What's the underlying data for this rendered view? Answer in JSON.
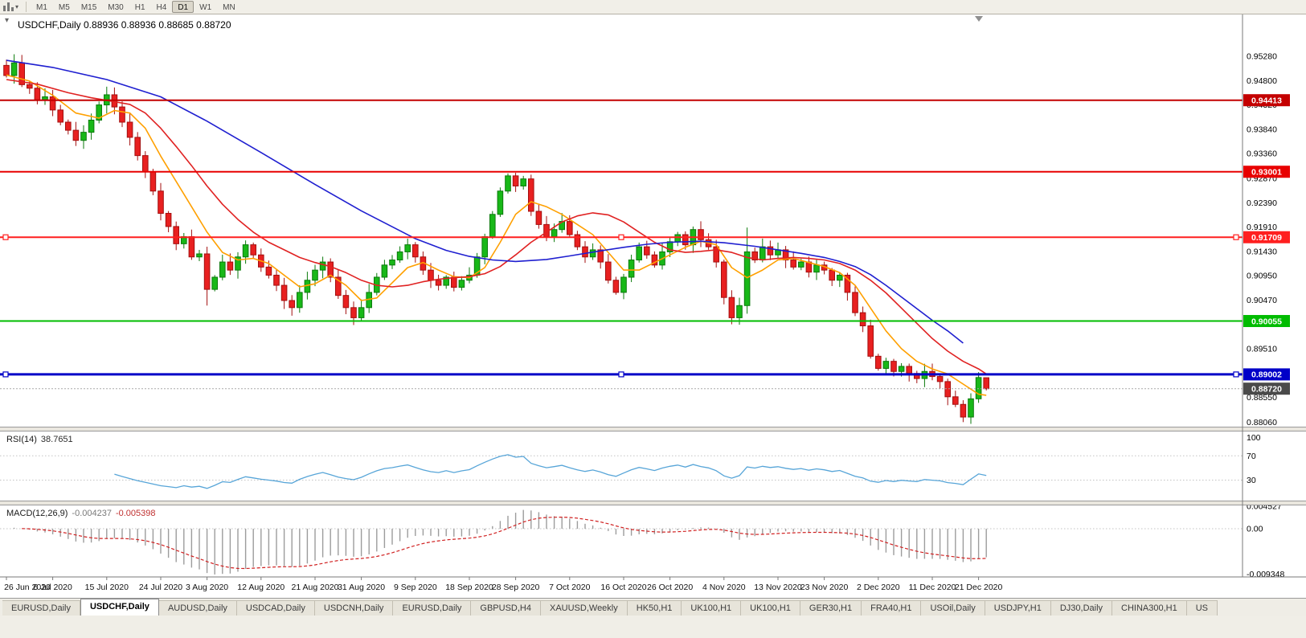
{
  "toolbar": {
    "timeframes": [
      "M1",
      "M5",
      "M15",
      "M30",
      "H1",
      "H4",
      "D1",
      "W1",
      "MN"
    ],
    "active_timeframe": "D1"
  },
  "icons": {
    "toolbar_chart": "candlestick-chart-icon",
    "toolbar_dropdown": "chevron-down-icon",
    "one_click_toggle": "one-click-trading-toggle",
    "shift_marker": "chart-shift-marker"
  },
  "chart": {
    "title": "USDCHF,Daily 0.88936 0.88936 0.88685 0.88720",
    "ohlc": {
      "open": "0.88936",
      "high": "0.88936",
      "low": "0.88685",
      "close": "0.88720"
    },
    "price_axis": {
      "min": 0.8797,
      "max": 0.9601,
      "ticks": [
        "0.95280",
        "0.94800",
        "0.94320",
        "0.93840",
        "0.93360",
        "0.92870",
        "0.92390",
        "0.91910",
        "0.91430",
        "0.90950",
        "0.90470",
        "0.89990",
        "0.89510",
        "0.89030",
        "0.88550",
        "0.88060"
      ]
    },
    "hlines": [
      {
        "price": 0.94413,
        "label": "0.94413",
        "color": "#c40000",
        "width": 2,
        "handles": false
      },
      {
        "price": 0.93001,
        "label": "0.93001",
        "color": "#e80000",
        "width": 2,
        "handles": false
      },
      {
        "price": 0.91709,
        "label": "0.91709",
        "color": "#ff1f1f",
        "width": 2,
        "handles": true
      },
      {
        "price": 0.90055,
        "label": "0.90055",
        "color": "#00bc00",
        "width": 2,
        "handles": false
      },
      {
        "price": 0.89002,
        "label": "0.89002",
        "color": "#0000c8",
        "width": 3,
        "handles": true
      }
    ],
    "current_price": {
      "price": 0.8872,
      "label": "0.88720",
      "color": "#4a4a4a"
    },
    "colors": {
      "bull_fill": "#18b818",
      "bull_stroke": "#0b7a0b",
      "bear_fill": "#e82020",
      "bear_stroke": "#a30f0f",
      "axis_text": "#000000",
      "panel_bg": "#ffffff"
    }
  },
  "chart_data": {
    "type": "candlestick",
    "symbol": "USDCHF",
    "timeframe": "Daily",
    "x_labels": [
      [
        "26 Jun 2020",
        0
      ],
      [
        "6 Jul 2020",
        6
      ],
      [
        "15 Jul 2020",
        13
      ],
      [
        "24 Jul 2020",
        20
      ],
      [
        "3 Aug 2020",
        26
      ],
      [
        "12 Aug 2020",
        33
      ],
      [
        "21 Aug 2020",
        40
      ],
      [
        "31 Aug 2020",
        46
      ],
      [
        "9 Sep 2020",
        53
      ],
      [
        "18 Sep 2020",
        60
      ],
      [
        "28 Sep 2020",
        66
      ],
      [
        "7 Oct 2020",
        73
      ],
      [
        "16 Oct 2020",
        80
      ],
      [
        "26 Oct 2020",
        86
      ],
      [
        "4 Nov 2020",
        93
      ],
      [
        "13 Nov 2020",
        100
      ],
      [
        "23 Nov 2020",
        106
      ],
      [
        "2 Dec 2020",
        113
      ],
      [
        "11 Dec 2020",
        120
      ],
      [
        "21 Dec 2020",
        126
      ]
    ],
    "closes": [
      0.949,
      0.9515,
      0.9472,
      0.9465,
      0.9442,
      0.9448,
      0.9422,
      0.9398,
      0.9382,
      0.9362,
      0.9378,
      0.9402,
      0.9432,
      0.9452,
      0.9428,
      0.9398,
      0.9368,
      0.9332,
      0.93,
      0.9262,
      0.9218,
      0.9192,
      0.9158,
      0.9172,
      0.9132,
      0.9138,
      0.9068,
      0.9092,
      0.9122,
      0.9106,
      0.9132,
      0.9156,
      0.9136,
      0.9112,
      0.9096,
      0.9076,
      0.9046,
      0.9032,
      0.9062,
      0.9086,
      0.9106,
      0.9122,
      0.9092,
      0.9056,
      0.9032,
      0.9012,
      0.9032,
      0.9062,
      0.9092,
      0.9116,
      0.9126,
      0.9142,
      0.9156,
      0.9132,
      0.9106,
      0.9086,
      0.9076,
      0.9092,
      0.9072,
      0.9086,
      0.9096,
      0.9132,
      0.9172,
      0.9216,
      0.9262,
      0.9292,
      0.9272,
      0.9286,
      0.9222,
      0.9196,
      0.9172,
      0.9186,
      0.9202,
      0.9176,
      0.9152,
      0.9132,
      0.9146,
      0.9122,
      0.9086,
      0.9062,
      0.9092,
      0.9126,
      0.9152,
      0.9136,
      0.9116,
      0.9142,
      0.9162,
      0.9176,
      0.9156,
      0.9186,
      0.9166,
      0.9152,
      0.9122,
      0.9052,
      0.9012,
      0.9036,
      0.9142,
      0.9126,
      0.9152,
      0.9136,
      0.9146,
      0.9126,
      0.9112,
      0.9122,
      0.9102,
      0.9116,
      0.9106,
      0.9086,
      0.9096,
      0.9062,
      0.9022,
      0.8996,
      0.8936,
      0.8912,
      0.8926,
      0.8906,
      0.8916,
      0.8902,
      0.8892,
      0.8906,
      0.8896,
      0.8886,
      0.8856,
      0.8841,
      0.8816,
      0.8852,
      0.8894,
      0.8872
    ],
    "extremes": {
      "1": {
        "h": 0.9532
      },
      "13": {
        "h": 0.9468
      },
      "26": {
        "l": 0.9036
      },
      "46": {
        "l": 0.9005
      },
      "65": {
        "h": 0.9297
      },
      "67": {
        "h": 0.9292
      },
      "89": {
        "h": 0.9192
      },
      "94": {
        "l": 0.8999
      },
      "96": {
        "h": 0.919
      },
      "124": {
        "l": 0.8806
      }
    },
    "last_bar": {
      "o": 0.88936,
      "h": 0.88936,
      "l": 0.88685,
      "c": 0.8872
    },
    "moving_averages": [
      {
        "name": "ma-fast-line",
        "color": "#ffa000",
        "points": [
          [
            0,
            0.9491
          ],
          [
            3,
            0.9479
          ],
          [
            6,
            0.9451
          ],
          [
            9,
            0.9416
          ],
          [
            12,
            0.9406
          ],
          [
            14,
            0.9421
          ],
          [
            16,
            0.9416
          ],
          [
            18,
            0.9386
          ],
          [
            20,
            0.9331
          ],
          [
            22,
            0.9281
          ],
          [
            24,
            0.9231
          ],
          [
            26,
            0.9181
          ],
          [
            28,
            0.9141
          ],
          [
            30,
            0.9126
          ],
          [
            32,
            0.9129
          ],
          [
            34,
            0.9119
          ],
          [
            36,
            0.9096
          ],
          [
            38,
            0.9073
          ],
          [
            40,
            0.9079
          ],
          [
            42,
            0.9096
          ],
          [
            44,
            0.9076
          ],
          [
            46,
            0.9046
          ],
          [
            48,
            0.9051
          ],
          [
            50,
            0.9081
          ],
          [
            52,
            0.9111
          ],
          [
            54,
            0.9121
          ],
          [
            56,
            0.9106
          ],
          [
            58,
            0.9093
          ],
          [
            60,
            0.9091
          ],
          [
            62,
            0.9111
          ],
          [
            64,
            0.9161
          ],
          [
            66,
            0.9216
          ],
          [
            68,
            0.9241
          ],
          [
            70,
            0.9231
          ],
          [
            72,
            0.9216
          ],
          [
            74,
            0.9196
          ],
          [
            76,
            0.9176
          ],
          [
            78,
            0.9141
          ],
          [
            80,
            0.9106
          ],
          [
            82,
            0.9106
          ],
          [
            84,
            0.9121
          ],
          [
            86,
            0.9136
          ],
          [
            88,
            0.9151
          ],
          [
            90,
            0.9163
          ],
          [
            92,
            0.9156
          ],
          [
            94,
            0.9111
          ],
          [
            96,
            0.9091
          ],
          [
            98,
            0.9106
          ],
          [
            100,
            0.9126
          ],
          [
            102,
            0.9129
          ],
          [
            104,
            0.9121
          ],
          [
            106,
            0.9113
          ],
          [
            108,
            0.9101
          ],
          [
            110,
            0.9076
          ],
          [
            112,
            0.9031
          ],
          [
            114,
            0.8986
          ],
          [
            116,
            0.8951
          ],
          [
            118,
            0.8926
          ],
          [
            120,
            0.8911
          ],
          [
            122,
            0.8901
          ],
          [
            124,
            0.8881
          ],
          [
            126,
            0.8861
          ],
          [
            127,
            0.8859
          ]
        ]
      },
      {
        "name": "ma-mid-line",
        "color": "#e02222",
        "points": [
          [
            0,
            0.9482
          ],
          [
            4,
            0.9473
          ],
          [
            8,
            0.9456
          ],
          [
            11,
            0.9446
          ],
          [
            13,
            0.9441
          ],
          [
            16,
            0.9433
          ],
          [
            18,
            0.9416
          ],
          [
            20,
            0.9386
          ],
          [
            22,
            0.935
          ],
          [
            24,
            0.9312
          ],
          [
            26,
            0.9272
          ],
          [
            28,
            0.9236
          ],
          [
            30,
            0.9206
          ],
          [
            32,
            0.9181
          ],
          [
            34,
            0.9161
          ],
          [
            36,
            0.9146
          ],
          [
            38,
            0.9131
          ],
          [
            40,
            0.9121
          ],
          [
            42,
            0.9113
          ],
          [
            44,
            0.9101
          ],
          [
            46,
            0.9086
          ],
          [
            48,
            0.9076
          ],
          [
            50,
            0.9073
          ],
          [
            52,
            0.9076
          ],
          [
            54,
            0.9083
          ],
          [
            56,
            0.9088
          ],
          [
            58,
            0.9091
          ],
          [
            60,
            0.9093
          ],
          [
            62,
            0.9099
          ],
          [
            64,
            0.9113
          ],
          [
            66,
            0.9136
          ],
          [
            68,
            0.9161
          ],
          [
            70,
            0.9181
          ],
          [
            72,
            0.9201
          ],
          [
            74,
            0.9213
          ],
          [
            76,
            0.9219
          ],
          [
            78,
            0.9215
          ],
          [
            80,
            0.9201
          ],
          [
            82,
            0.9181
          ],
          [
            84,
            0.9161
          ],
          [
            86,
            0.9146
          ],
          [
            88,
            0.9141
          ],
          [
            90,
            0.9143
          ],
          [
            92,
            0.9146
          ],
          [
            94,
            0.9141
          ],
          [
            96,
            0.9131
          ],
          [
            98,
            0.9126
          ],
          [
            100,
            0.9129
          ],
          [
            102,
            0.9131
          ],
          [
            104,
            0.9129
          ],
          [
            106,
            0.9126
          ],
          [
            108,
            0.9119
          ],
          [
            110,
            0.9106
          ],
          [
            112,
            0.9086
          ],
          [
            114,
            0.9061
          ],
          [
            116,
            0.9031
          ],
          [
            118,
            0.9001
          ],
          [
            120,
            0.8971
          ],
          [
            122,
            0.8946
          ],
          [
            124,
            0.8926
          ],
          [
            126,
            0.8911
          ],
          [
            127,
            0.8901
          ]
        ]
      },
      {
        "name": "ma-slow-line",
        "color": "#1f1fd0",
        "points": [
          [
            0,
            0.952
          ],
          [
            6,
            0.9506
          ],
          [
            13,
            0.9482
          ],
          [
            20,
            0.9448
          ],
          [
            26,
            0.94
          ],
          [
            33,
            0.9338
          ],
          [
            40,
            0.9275
          ],
          [
            46,
            0.9223
          ],
          [
            53,
            0.9168
          ],
          [
            57,
            0.9145
          ],
          [
            60,
            0.9133
          ],
          [
            63,
            0.9126
          ],
          [
            66,
            0.9123
          ],
          [
            70,
            0.9127
          ],
          [
            73,
            0.9134
          ],
          [
            77,
            0.9144
          ],
          [
            80,
            0.9151
          ],
          [
            83,
            0.9157
          ],
          [
            86,
            0.9161
          ],
          [
            90,
            0.9163
          ],
          [
            93,
            0.916
          ],
          [
            97,
            0.9153
          ],
          [
            100,
            0.9146
          ],
          [
            103,
            0.9139
          ],
          [
            106,
            0.9131
          ],
          [
            108,
            0.9123
          ],
          [
            110,
            0.9113
          ],
          [
            112,
            0.9097
          ],
          [
            114,
            0.9076
          ],
          [
            116,
            0.9053
          ],
          [
            118,
            0.903
          ],
          [
            120,
            0.9007
          ],
          [
            122,
            0.8986
          ],
          [
            124,
            0.8962
          ]
        ]
      }
    ],
    "rsi": {
      "label": "RSI(14)",
      "value": "38.7651",
      "period": 14,
      "levels": [
        70,
        30
      ],
      "axis": [
        100,
        70,
        30
      ],
      "color": "#57a5d8"
    },
    "macd": {
      "label": "MACD(12,26,9)",
      "value_main": "-0.004237",
      "value_signal": "-0.005398",
      "range": [
        -0.009348,
        0.004527
      ],
      "axis": [
        [
          "0.004527",
          0.004527
        ],
        [
          "0.00",
          0
        ],
        [
          "-0.009348",
          -0.009348
        ]
      ],
      "hist_color": "#9c9c9c",
      "signal_color": "#d02020"
    }
  },
  "tabs": {
    "items": [
      "EURUSD,Daily",
      "USDCHF,Daily",
      "AUDUSD,Daily",
      "USDCAD,Daily",
      "USDCNH,Daily",
      "EURUSD,Daily",
      "GBPUSD,H4",
      "XAUUSD,Weekly",
      "HK50,H1",
      "UK100,H1",
      "UK100,H1",
      "GER30,H1",
      "FRA40,H1",
      "USOil,Daily",
      "USDJPY,H1",
      "DJ30,Daily",
      "CHINA300,H1",
      "US"
    ],
    "active_index": 1
  }
}
